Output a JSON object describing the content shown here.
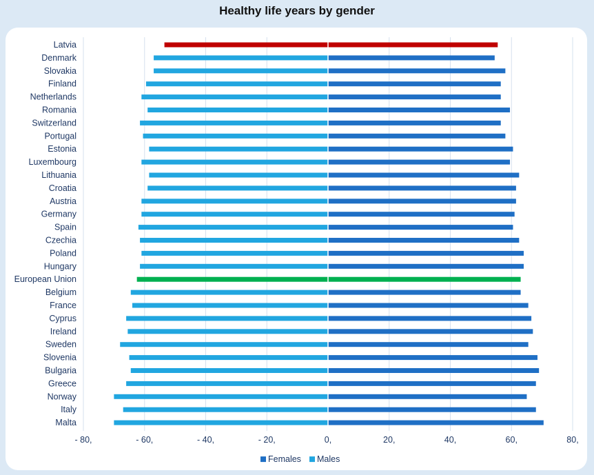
{
  "chart_data": {
    "type": "bar",
    "orientation": "horizontal-diverging",
    "title": "Healthy life years by gender",
    "categories": [
      "Latvia",
      "Denmark",
      "Slovakia",
      "Finland",
      "Netherlands",
      "Romania",
      "Switzerland",
      "Portugal",
      "Estonia",
      "Luxembourg",
      "Lithuania",
      "Croatia",
      "Austria",
      "Germany",
      "Spain",
      "Czechia",
      "Poland",
      "Hungary",
      "European Union",
      "Belgium",
      "France",
      "Cyprus",
      "Ireland",
      "Sweden",
      "Slovenia",
      "Bulgaria",
      "Greece",
      "Norway",
      "Italy",
      "Malta"
    ],
    "series": [
      {
        "name": "Females",
        "color": "#1f6fc5",
        "values": [
          55.5,
          54.5,
          58,
          56.5,
          56.5,
          59.5,
          56.5,
          58,
          60.5,
          59.5,
          62.5,
          61.5,
          61.5,
          61,
          60.5,
          62.5,
          64,
          64,
          63,
          63,
          65.5,
          66.5,
          67,
          65.5,
          68.5,
          69,
          68,
          65,
          68,
          70.5
        ]
      },
      {
        "name": "Males",
        "color": "#21a6e0",
        "values": [
          -53.5,
          -57,
          -57,
          -59.5,
          -61,
          -59,
          -61.5,
          -60.5,
          -58.5,
          -61,
          -58.5,
          -59,
          -61,
          -61,
          -62,
          -61.5,
          -61,
          -61.5,
          -62.5,
          -64.5,
          -64,
          -66,
          -65.5,
          -68,
          -65,
          -64.5,
          -66,
          -70,
          -67,
          -70
        ]
      }
    ],
    "highlight_colors": {
      "Latvia": "#c00000",
      "European Union": "#00b050"
    },
    "xlim": [
      -80,
      80
    ],
    "xticks": [
      -80,
      -60,
      -40,
      -20,
      0,
      20,
      40,
      60,
      80
    ],
    "xtick_labels": [
      "- 80,",
      "- 60,",
      "- 40,",
      "- 20,",
      "0,",
      "20,",
      "40,",
      "60,",
      "80,"
    ],
    "grid": "vertical",
    "legend": {
      "position": "bottom",
      "entries": [
        "Females",
        "Males"
      ]
    }
  }
}
